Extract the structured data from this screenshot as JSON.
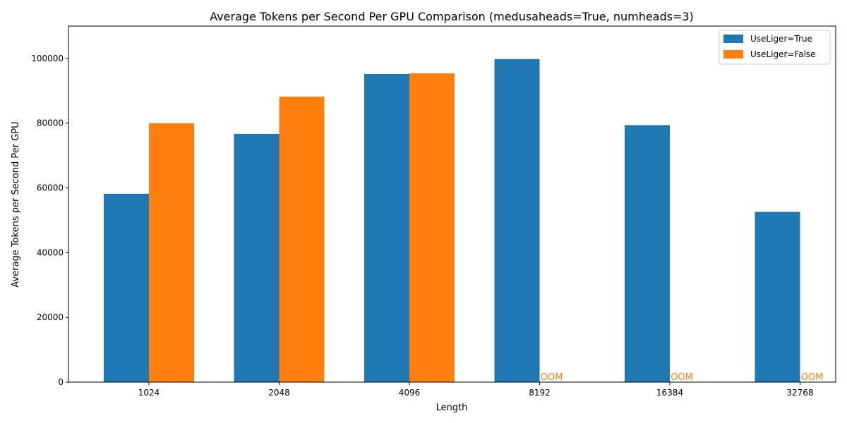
{
  "chart_data": {
    "type": "bar",
    "title": "Average Tokens per Second Per GPU Comparison (medusaheads=True, numheads=3)",
    "xlabel": "Length",
    "ylabel": "Average Tokens per Second Per GPU",
    "categories": [
      "1024",
      "2048",
      "4096",
      "8192",
      "16384",
      "32768"
    ],
    "ylim": [
      0,
      110000
    ],
    "yticks": [
      0,
      20000,
      40000,
      60000,
      80000,
      100000
    ],
    "grid": false,
    "legend_position": "top-right",
    "series": [
      {
        "name": "UseLiger=True",
        "color": "#1f77b4",
        "values": [
          58200,
          76700,
          95200,
          99800,
          79400,
          52600
        ]
      },
      {
        "name": "UseLiger=False",
        "color": "#ff7f0e",
        "values": [
          80000,
          88200,
          95400,
          null,
          null,
          null
        ]
      }
    ],
    "missing_label": "OOM"
  }
}
